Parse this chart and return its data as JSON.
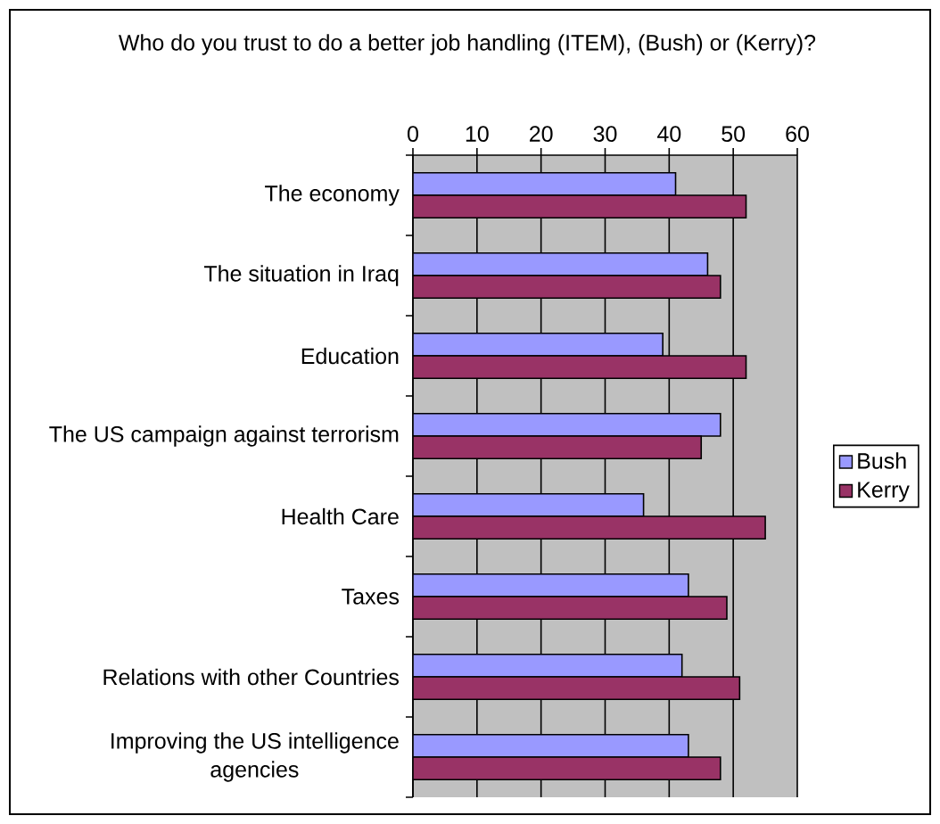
{
  "chart_data": {
    "type": "bar",
    "orientation": "horizontal",
    "title": "Who do you trust to do a better job handling (ITEM), (Bush) or (Kerry)?",
    "categories": [
      "The economy",
      "The situation in Iraq",
      "Education",
      "The US campaign against terrorism",
      "Health Care",
      "Taxes",
      "Relations with other Countries",
      "Improving the US intelligence agencies"
    ],
    "series": [
      {
        "name": "Bush",
        "color": "#9999ff",
        "values": [
          41,
          46,
          39,
          48,
          36,
          43,
          42,
          43
        ]
      },
      {
        "name": "Kerry",
        "color": "#993366",
        "values": [
          52,
          48,
          52,
          45,
          55,
          49,
          51,
          48
        ]
      }
    ],
    "xlim": [
      0,
      60
    ],
    "xticks": [
      0,
      10,
      20,
      30,
      40,
      50,
      60
    ],
    "grid": "x",
    "legend": "right"
  }
}
